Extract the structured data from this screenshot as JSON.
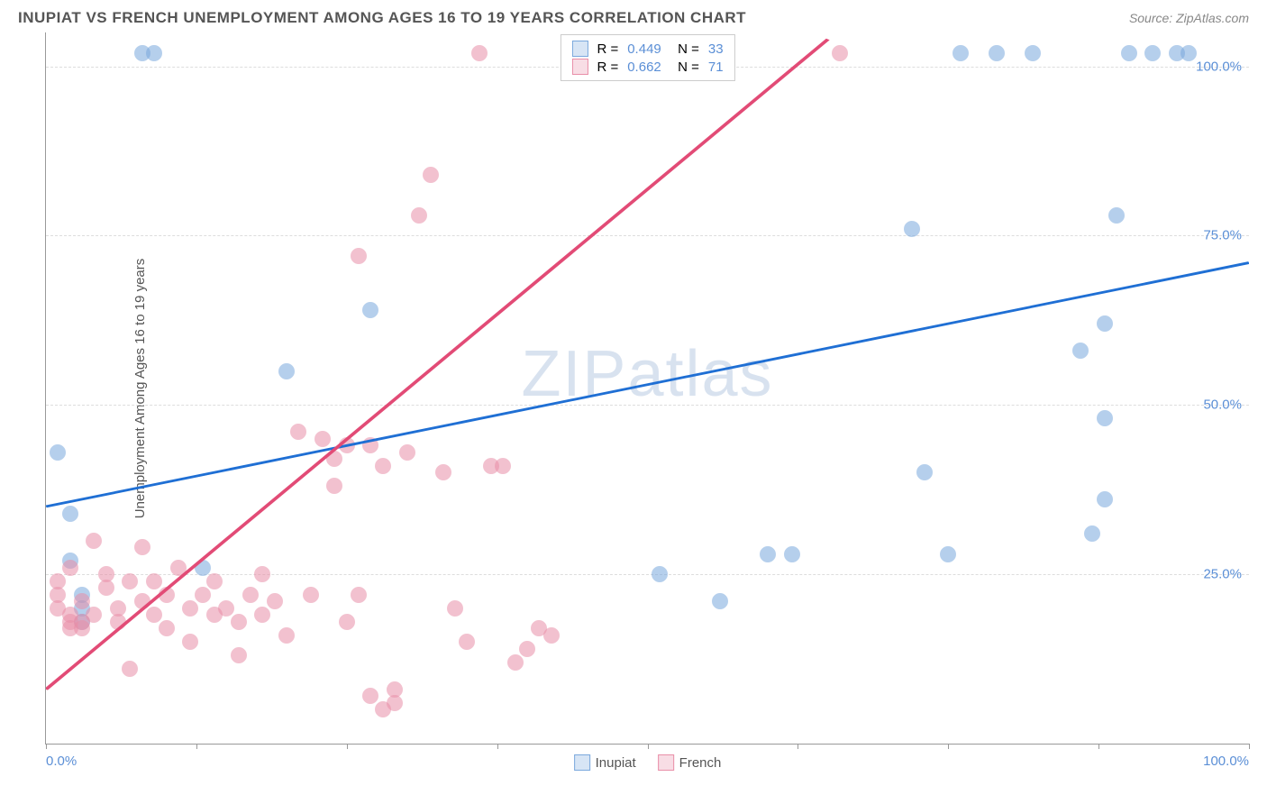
{
  "title": "INUPIAT VS FRENCH UNEMPLOYMENT AMONG AGES 16 TO 19 YEARS CORRELATION CHART",
  "source": "Source: ZipAtlas.com",
  "watermark": "ZIPatlas",
  "ylabel": "Unemployment Among Ages 16 to 19 years",
  "chart": {
    "type": "scatter",
    "xlim": [
      0,
      100
    ],
    "ylim": [
      0,
      105
    ],
    "yticks": [
      25,
      50,
      75,
      100
    ],
    "ytick_labels": [
      "25.0%",
      "50.0%",
      "75.0%",
      "100.0%"
    ],
    "xticks": [
      0,
      50,
      100
    ],
    "xtick_labels": [
      "0.0%",
      "",
      "100.0%"
    ],
    "xtick_marks": [
      0,
      12.5,
      25,
      37.5,
      50,
      62.5,
      75,
      87.5,
      100
    ],
    "grid_color": "#dddddd",
    "background_color": "#ffffff",
    "point_radius": 9,
    "point_stroke_width": 1.5,
    "point_fill_opacity": 0.25,
    "series": [
      {
        "name": "Inupiat",
        "color": "#7aa8dd",
        "line_color": "#1f6fd4",
        "R": "0.449",
        "N": "33",
        "trend": {
          "x1": 0,
          "y1": 35,
          "x2": 100,
          "y2": 71
        },
        "points": [
          [
            1,
            43
          ],
          [
            2,
            34
          ],
          [
            2,
            27
          ],
          [
            3,
            22
          ],
          [
            3,
            20
          ],
          [
            3,
            18
          ],
          [
            8,
            102
          ],
          [
            9,
            102
          ],
          [
            13,
            26
          ],
          [
            20,
            55
          ],
          [
            27,
            64
          ],
          [
            51,
            25
          ],
          [
            56,
            21
          ],
          [
            60,
            28
          ],
          [
            62,
            28
          ],
          [
            72,
            76
          ],
          [
            73,
            40
          ],
          [
            75,
            28
          ],
          [
            76,
            102
          ],
          [
            79,
            102
          ],
          [
            82,
            102
          ],
          [
            86,
            58
          ],
          [
            87,
            31
          ],
          [
            88,
            48
          ],
          [
            88,
            36
          ],
          [
            88,
            62
          ],
          [
            89,
            78
          ],
          [
            90,
            102
          ],
          [
            92,
            102
          ],
          [
            94,
            102
          ],
          [
            95,
            102
          ]
        ]
      },
      {
        "name": "French",
        "color": "#e98fa8",
        "line_color": "#e24b76",
        "R": "0.662",
        "N": "71",
        "trend": {
          "x1": 0,
          "y1": 8,
          "x2": 65,
          "y2": 104
        },
        "points": [
          [
            1,
            22
          ],
          [
            1,
            24
          ],
          [
            1,
            20
          ],
          [
            2,
            18
          ],
          [
            2,
            17
          ],
          [
            2,
            19
          ],
          [
            2,
            26
          ],
          [
            3,
            18
          ],
          [
            3,
            21
          ],
          [
            3,
            17
          ],
          [
            4,
            30
          ],
          [
            4,
            19
          ],
          [
            5,
            23
          ],
          [
            5,
            25
          ],
          [
            6,
            20
          ],
          [
            6,
            18
          ],
          [
            7,
            24
          ],
          [
            7,
            11
          ],
          [
            8,
            21
          ],
          [
            8,
            29
          ],
          [
            9,
            24
          ],
          [
            9,
            19
          ],
          [
            10,
            22
          ],
          [
            10,
            17
          ],
          [
            11,
            26
          ],
          [
            12,
            20
          ],
          [
            12,
            15
          ],
          [
            13,
            22
          ],
          [
            14,
            19
          ],
          [
            14,
            24
          ],
          [
            15,
            20
          ],
          [
            16,
            18
          ],
          [
            16,
            13
          ],
          [
            17,
            22
          ],
          [
            18,
            25
          ],
          [
            18,
            19
          ],
          [
            19,
            21
          ],
          [
            20,
            16
          ],
          [
            21,
            46
          ],
          [
            22,
            22
          ],
          [
            23,
            45
          ],
          [
            24,
            42
          ],
          [
            24,
            38
          ],
          [
            25,
            44
          ],
          [
            25,
            18
          ],
          [
            26,
            72
          ],
          [
            26,
            22
          ],
          [
            27,
            44
          ],
          [
            27,
            7
          ],
          [
            28,
            41
          ],
          [
            28,
            5
          ],
          [
            29,
            8
          ],
          [
            29,
            6
          ],
          [
            30,
            43
          ],
          [
            31,
            78
          ],
          [
            32,
            84
          ],
          [
            33,
            40
          ],
          [
            34,
            20
          ],
          [
            35,
            15
          ],
          [
            36,
            102
          ],
          [
            37,
            41
          ],
          [
            38,
            41
          ],
          [
            39,
            12
          ],
          [
            40,
            14
          ],
          [
            41,
            17
          ],
          [
            66,
            102
          ],
          [
            42,
            16
          ]
        ]
      }
    ]
  },
  "legend_bottom": [
    {
      "label": "Inupiat",
      "color": "#7aa8dd"
    },
    {
      "label": "French",
      "color": "#e98fa8"
    }
  ]
}
